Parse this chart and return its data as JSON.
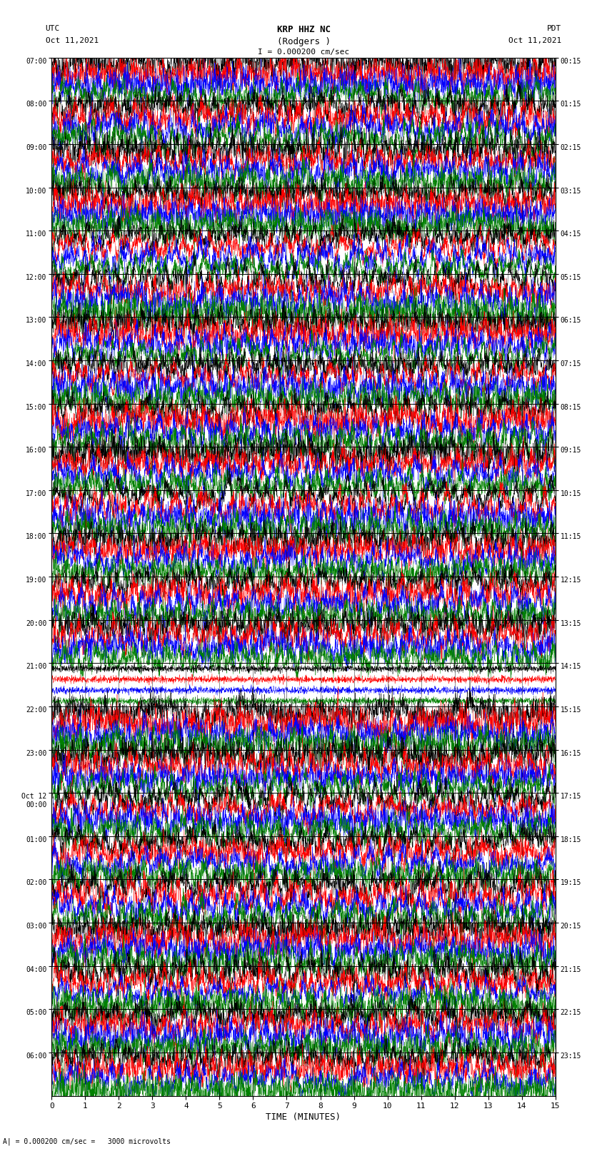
{
  "title_line1": "KRP HHZ NC",
  "title_line2": "(Rodgers )",
  "scale_label": "I = 0.000200 cm/sec",
  "left_label_top": "UTC",
  "left_label_date": "Oct 11,2021",
  "right_label_top": "PDT",
  "right_label_date": "Oct 11,2021",
  "xlabel": "TIME (MINUTES)",
  "bottom_note": "A| = 0.000200 cm/sec =   3000 microvolts",
  "left_times": [
    "07:00",
    "08:00",
    "09:00",
    "10:00",
    "11:00",
    "12:00",
    "13:00",
    "14:00",
    "15:00",
    "16:00",
    "17:00",
    "18:00",
    "19:00",
    "20:00",
    "21:00",
    "22:00",
    "23:00",
    "Oct 12\n00:00",
    "01:00",
    "02:00",
    "03:00",
    "04:00",
    "05:00",
    "06:00"
  ],
  "right_times": [
    "00:15",
    "01:15",
    "02:15",
    "03:15",
    "04:15",
    "05:15",
    "06:15",
    "07:15",
    "08:15",
    "09:15",
    "10:15",
    "11:15",
    "12:15",
    "13:15",
    "14:15",
    "15:15",
    "16:15",
    "17:15",
    "18:15",
    "19:15",
    "20:15",
    "21:15",
    "22:15",
    "23:15"
  ],
  "n_rows": 24,
  "sub_traces": 4,
  "xmin": 0,
  "xmax": 15,
  "colors": [
    "black",
    "red",
    "blue",
    "green"
  ],
  "seed": 42,
  "background_color": "white",
  "special_row": 14,
  "samples": 3000
}
